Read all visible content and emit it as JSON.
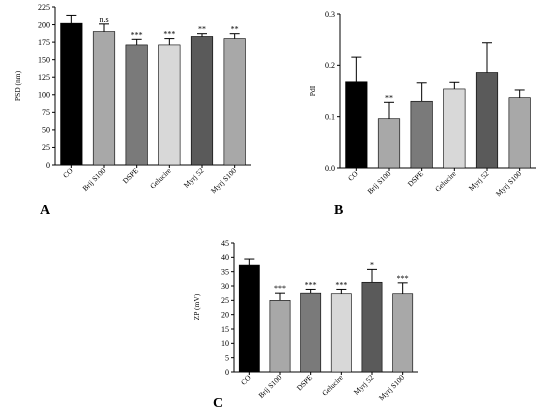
{
  "chart_data": [
    {
      "type": "bar",
      "panel_label": "A",
      "ylabel": "PSD (nm)",
      "xlabel": "",
      "ylim": [
        0,
        225
      ],
      "yticks": [
        0,
        25,
        50,
        75,
        100,
        125,
        150,
        175,
        200,
        225
      ],
      "categories": [
        "CO",
        "Brij S100",
        "DSPE",
        "Gelucire",
        "Myrj 52",
        "Myrj S100"
      ],
      "values": [
        202,
        190,
        171,
        171,
        183,
        180
      ],
      "errors": [
        11,
        11,
        8,
        9,
        4,
        7
      ],
      "significance": [
        "",
        "n.s",
        "***",
        "***",
        "**",
        "**"
      ],
      "colors": [
        "#000000",
        "#a8a8a8",
        "#7a7a7a",
        "#d8d8d8",
        "#5a5a5a",
        "#a8a8a8"
      ],
      "grid": false
    },
    {
      "type": "bar",
      "panel_label": "B",
      "ylabel": "PdI",
      "xlabel": "",
      "ylim": [
        0,
        0.3
      ],
      "yticks": [
        "0.0",
        "0.1",
        "0.2",
        "0.3"
      ],
      "categories": [
        "CO",
        "Brij S100",
        "DSPE",
        "Gelucire",
        "Myrj 52",
        "Myrj S100"
      ],
      "values": [
        0.168,
        0.096,
        0.13,
        0.154,
        0.186,
        0.137
      ],
      "errors": [
        0.048,
        0.032,
        0.036,
        0.013,
        0.058,
        0.015
      ],
      "significance": [
        "",
        "**",
        "",
        "",
        "",
        ""
      ],
      "colors": [
        "#000000",
        "#a8a8a8",
        "#7a7a7a",
        "#d8d8d8",
        "#5a5a5a",
        "#a8a8a8"
      ],
      "grid": false
    },
    {
      "type": "bar",
      "panel_label": "C",
      "ylabel": "ZP (mV)",
      "xlabel": "",
      "ylim": [
        0,
        45
      ],
      "yticks": [
        0,
        5,
        10,
        15,
        20,
        25,
        30,
        35,
        40,
        45
      ],
      "categories": [
        "CO",
        "Brij S100",
        "DSPE",
        "Gelucire",
        "Myrj 52",
        "Myrj S100"
      ],
      "values": [
        37.3,
        25,
        27.5,
        27.3,
        31.3,
        27.3
      ],
      "errors": [
        2.1,
        2.5,
        1.3,
        1.5,
        4.5,
        3.8
      ],
      "significance": [
        "",
        "***",
        "***",
        "***",
        "*",
        "***"
      ],
      "colors": [
        "#000000",
        "#a8a8a8",
        "#7a7a7a",
        "#d8d8d8",
        "#5a5a5a",
        "#a8a8a8"
      ],
      "grid": false
    }
  ]
}
